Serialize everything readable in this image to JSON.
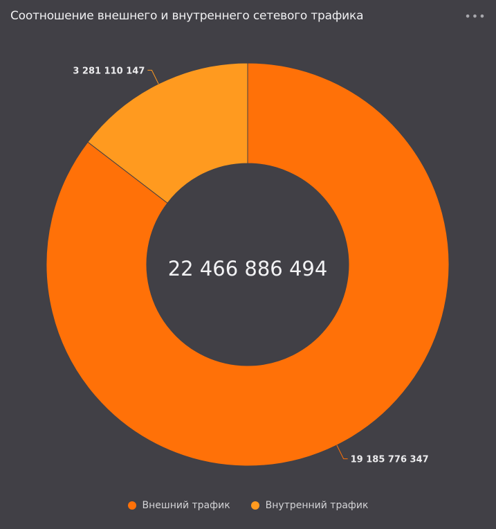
{
  "header": {
    "title": "Соотношение внешнего и внутреннего сетевого трафика",
    "menu_icon": "more-horizontal-icon"
  },
  "chart_data": {
    "type": "pie",
    "variant": "donut",
    "title": "Соотношение внешнего и внутреннего сетевого трафика",
    "total_label": "22 466 886 494",
    "total": 22466886494,
    "series": [
      {
        "name": "Внешний трафик",
        "value": 19185776347,
        "label": "19 185 776 347",
        "color": "#ff7108"
      },
      {
        "name": "Внутренний трафик",
        "value": 3281110147,
        "label": "3 281 110 147",
        "color": "#ff9a1f"
      }
    ],
    "legend_position": "bottom-center"
  }
}
